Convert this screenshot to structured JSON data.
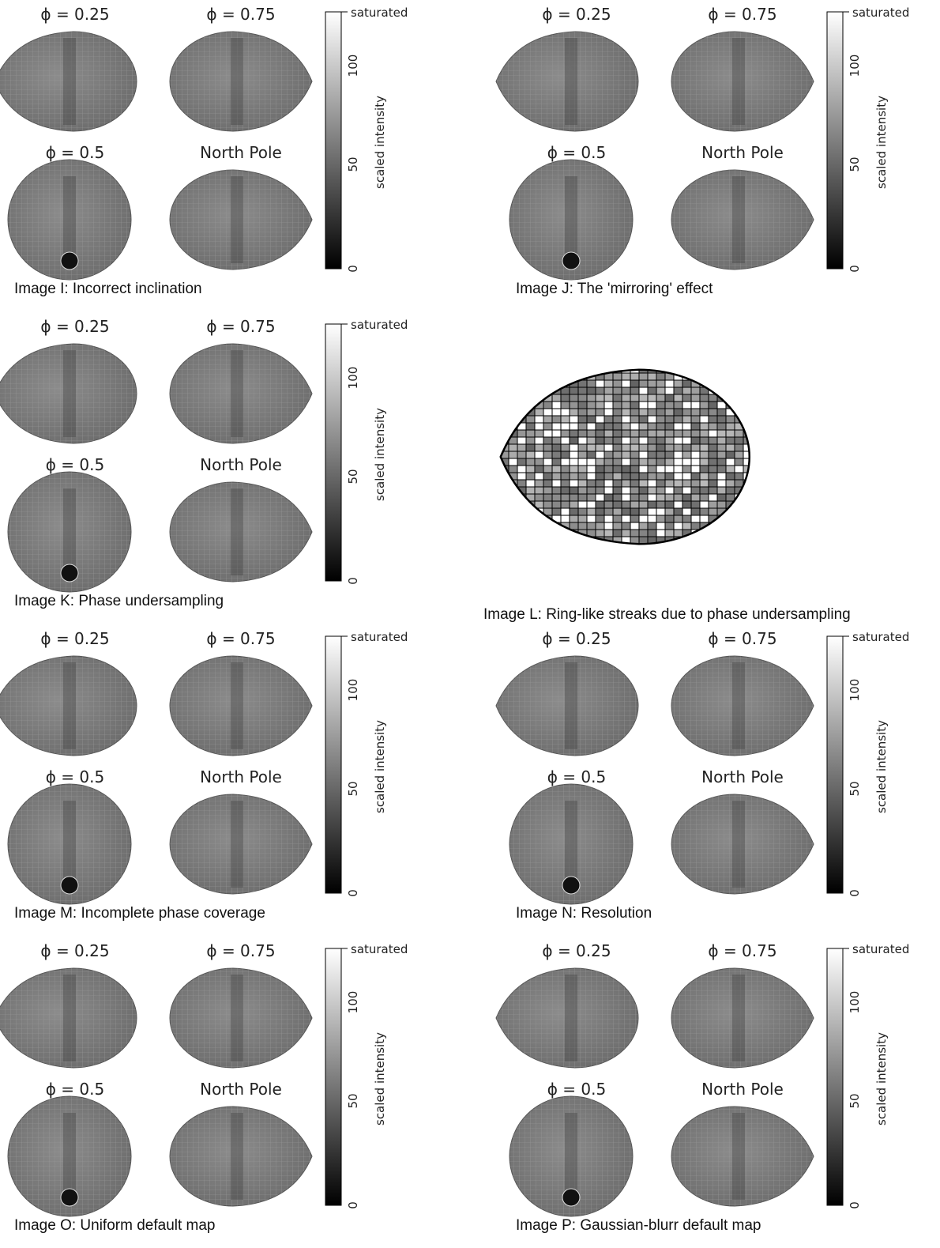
{
  "panels": [
    {
      "id": "I",
      "labels": [
        "ϕ = 0.25",
        "ϕ = 0.75",
        "ϕ = 0.5",
        "North Pole"
      ],
      "colorbar": {
        "top": "saturated",
        "ticks": [
          "0",
          "50",
          "100"
        ],
        "title": "scaled intensity"
      },
      "caption": "Image I: Incorrect inclination"
    },
    {
      "id": "J",
      "labels": [
        "ϕ = 0.25",
        "ϕ = 0.75",
        "ϕ = 0.5",
        "North Pole"
      ],
      "colorbar": {
        "top": "saturated",
        "ticks": [
          "0",
          "50",
          "100"
        ],
        "title": "scaled intensity"
      },
      "caption": "Image J: The 'mirroring' effect"
    },
    {
      "id": "K",
      "labels": [
        "ϕ = 0.25",
        "ϕ = 0.75",
        "ϕ = 0.5",
        "North Pole"
      ],
      "colorbar": {
        "top": "saturated",
        "ticks": [
          "0",
          "50",
          "100"
        ],
        "title": "scaled intensity"
      },
      "caption": "Image K: Phase undersampling"
    },
    {
      "id": "M",
      "labels": [
        "ϕ = 0.25",
        "ϕ = 0.75",
        "ϕ = 0.5",
        "North Pole"
      ],
      "colorbar": {
        "top": "saturated",
        "ticks": [
          "0",
          "50",
          "100"
        ],
        "title": "scaled intensity"
      },
      "caption": "Image M: Incomplete phase coverage"
    },
    {
      "id": "N",
      "labels": [
        "ϕ = 0.25",
        "ϕ = 0.75",
        "ϕ = 0.5",
        "North Pole"
      ],
      "colorbar": {
        "top": "saturated",
        "ticks": [
          "0",
          "50",
          "100"
        ],
        "title": "scaled intensity"
      },
      "caption": "Image N: Resolution"
    },
    {
      "id": "O",
      "labels": [
        "ϕ = 0.25",
        "ϕ = 0.75",
        "ϕ = 0.5",
        "North Pole"
      ],
      "colorbar": {
        "top": "saturated",
        "ticks": [
          "0",
          "50",
          "100"
        ],
        "title": "scaled intensity"
      },
      "caption": "Image O: Uniform default map"
    },
    {
      "id": "P",
      "labels": [
        "ϕ = 0.25",
        "ϕ = 0.75",
        "ϕ = 0.5",
        "North Pole"
      ],
      "colorbar": {
        "top": "saturated",
        "ticks": [
          "0",
          "50",
          "100"
        ],
        "title": "scaled intensity"
      },
      "caption": "Image P: Gaussian-blurr default map"
    }
  ],
  "panel_l": {
    "caption": "Image L: Ring-like streaks due to phase undersampling"
  }
}
